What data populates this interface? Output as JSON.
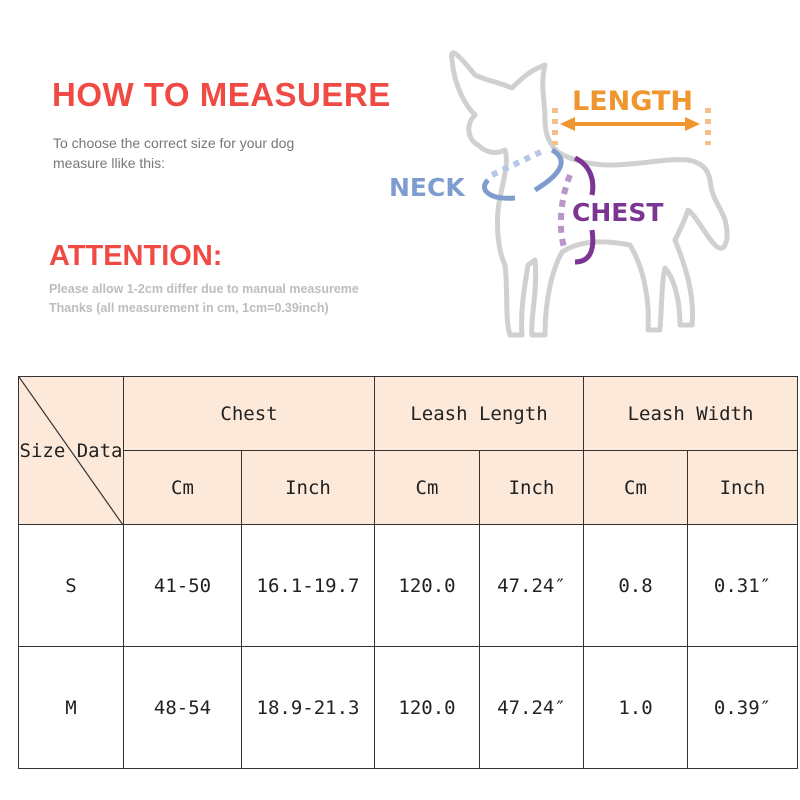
{
  "header": {
    "title": "HOW TO MEASUERE",
    "intro_line1": "To choose the correct size for your dog",
    "intro_line2": "measure llike this:",
    "attention": "ATTENTION:",
    "note_line1": "Please allow 1-2cm differ due to manual measureme",
    "note_line2": "Thanks (all measurement in cm, 1cm=0.39inch)"
  },
  "diagram": {
    "length_label": "LENGTH",
    "neck_label": "NECK",
    "chest_label": "CHEST",
    "colors": {
      "length": "#f0962e",
      "neck": "#7f9ccf",
      "chest": "#7b3592",
      "outline": "#d0d0d0",
      "title": "#f04a45",
      "table_header_bg": "#fde9da"
    }
  },
  "table": {
    "corner_size": "Size",
    "corner_data": "Data",
    "groups": [
      "Chest",
      "Leash Length",
      "Leash Width"
    ],
    "units": [
      "Cm",
      "Inch",
      "Cm",
      "Inch",
      "Cm",
      "Inch"
    ],
    "rows": [
      {
        "size": "S",
        "values": [
          "41-50",
          "16.1-19.7",
          "120.0",
          "47.24″",
          "0.8",
          "0.31″"
        ]
      },
      {
        "size": "M",
        "values": [
          "48-54",
          "18.9-21.3",
          "120.0",
          "47.24″",
          "1.0",
          "0.39″"
        ]
      }
    ]
  }
}
